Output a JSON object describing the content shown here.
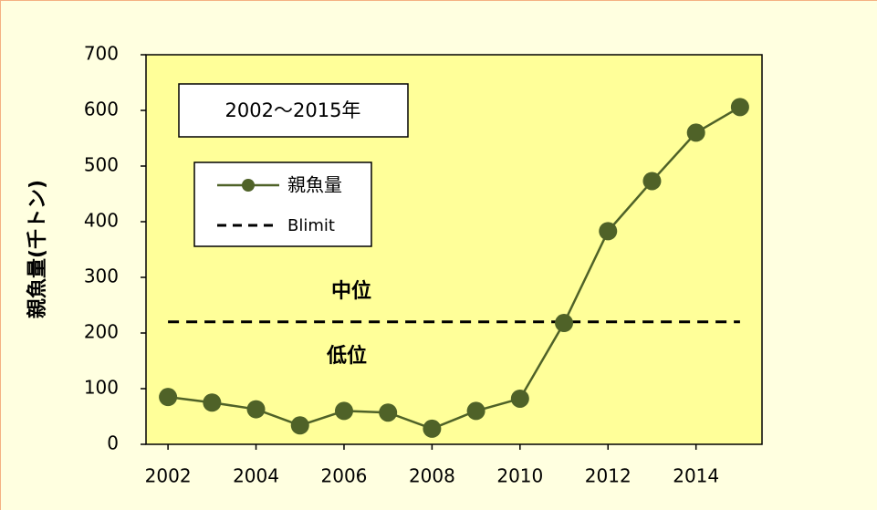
{
  "chart_data": {
    "type": "line",
    "title": "2002～2015年",
    "y_label": "親魚量(千トン)",
    "x": [
      2002,
      2003,
      2004,
      2005,
      2006,
      2007,
      2008,
      2009,
      2010,
      2011,
      2012,
      2013,
      2014,
      2015
    ],
    "series": [
      {
        "name": "親魚量",
        "color": "#4f6228",
        "values": [
          85,
          75,
          63,
          34,
          60,
          57,
          28,
          60,
          82,
          218,
          383,
          473,
          560,
          606
        ]
      }
    ],
    "reference_line": {
      "name": "Blimit",
      "value": 220,
      "color": "#000000"
    },
    "annotations": [
      "中位",
      "低位"
    ],
    "xlim": [
      2001.5,
      2015.5
    ],
    "xticks": [
      2002,
      2004,
      2006,
      2008,
      2010,
      2012,
      2014
    ],
    "ylim": [
      0,
      700
    ],
    "yticks": [
      0,
      100,
      200,
      300,
      400,
      500,
      600,
      700
    ]
  }
}
